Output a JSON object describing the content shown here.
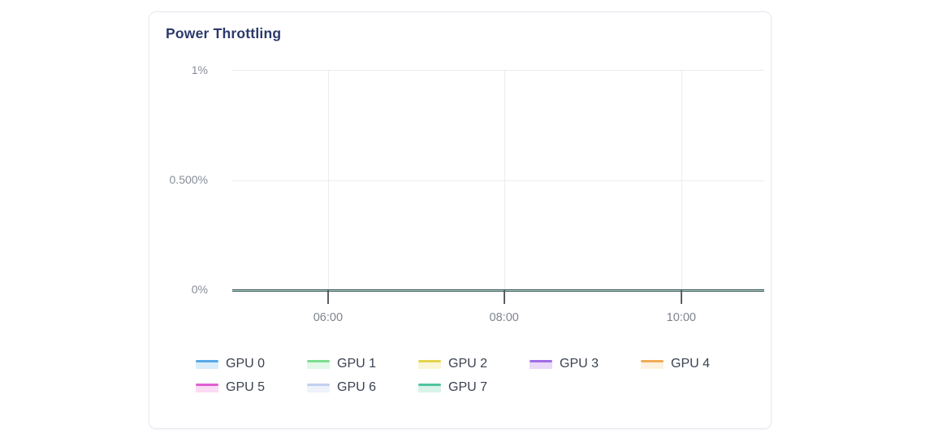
{
  "card": {
    "title": "Power Throttling"
  },
  "chart_data": {
    "type": "line",
    "title": "Power Throttling",
    "xlabel": "",
    "ylabel": "",
    "x_ticks": [
      "06:00",
      "08:00",
      "10:00"
    ],
    "y_ticks": [
      "0%",
      "0.500%",
      "1%"
    ],
    "ylim_percent": [
      0,
      1
    ],
    "grid": true,
    "legend_position": "bottom",
    "layout": {
      "zero_line_color": "#4c6b68",
      "grid_color": "#ececec",
      "title_color": "#2b3a6b",
      "tick_label_color": "#7e848e"
    },
    "series": [
      {
        "name": "GPU 0",
        "color": "#58a9e8",
        "fill": "#d9edfb",
        "x": [
          "06:00",
          "08:00",
          "10:00"
        ],
        "values": [
          0,
          0,
          0
        ]
      },
      {
        "name": "GPU 1",
        "color": "#7cdd90",
        "fill": "#e3f8e8",
        "x": [
          "06:00",
          "08:00",
          "10:00"
        ],
        "values": [
          0,
          0,
          0
        ]
      },
      {
        "name": "GPU 2",
        "color": "#e3d44f",
        "fill": "#faf6d8",
        "x": [
          "06:00",
          "08:00",
          "10:00"
        ],
        "values": [
          0,
          0,
          0
        ]
      },
      {
        "name": "GPU 3",
        "color": "#a06ee6",
        "fill": "#ead9fa",
        "x": [
          "06:00",
          "08:00",
          "10:00"
        ],
        "values": [
          0,
          0,
          0
        ]
      },
      {
        "name": "GPU 4",
        "color": "#f2ab57",
        "fill": "#fdf2e0",
        "x": [
          "06:00",
          "08:00",
          "10:00"
        ],
        "values": [
          0,
          0,
          0
        ]
      },
      {
        "name": "GPU 5",
        "color": "#e05fd2",
        "fill": "#fadcf4",
        "x": [
          "06:00",
          "08:00",
          "10:00"
        ],
        "values": [
          0,
          0,
          0
        ]
      },
      {
        "name": "GPU 6",
        "color": "#c2cfee",
        "fill": "#eef2fb",
        "x": [
          "06:00",
          "08:00",
          "10:00"
        ],
        "values": [
          0,
          0,
          0
        ]
      },
      {
        "name": "GPU 7",
        "color": "#4ec3a0",
        "fill": "#d9f3ea",
        "x": [
          "06:00",
          "08:00",
          "10:00"
        ],
        "values": [
          0,
          0,
          0
        ]
      }
    ]
  }
}
